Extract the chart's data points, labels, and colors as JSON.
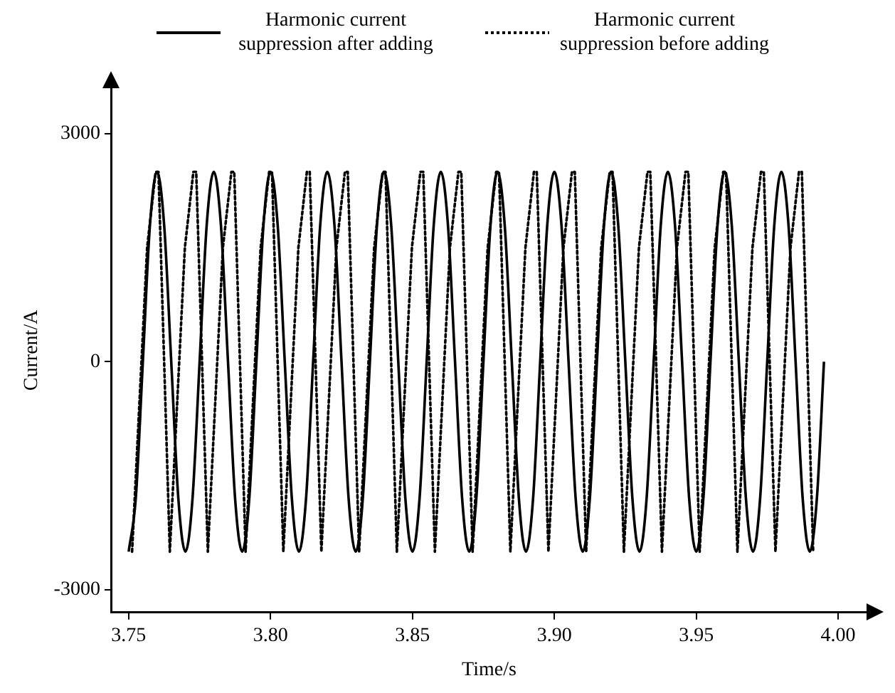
{
  "chart_data": {
    "type": "line",
    "xlabel": "Time/s",
    "ylabel": "Current/A",
    "xlim": [
      3.744,
      4.01
    ],
    "ylim": [
      -3300,
      3600
    ],
    "xticks": [
      3.75,
      {
        "value": 3.8,
        "label": "3.80"
      },
      3.85,
      {
        "value": 3.9,
        "label": "3.90"
      },
      3.95,
      {
        "value": 4.0,
        "label": "4.00"
      }
    ],
    "yticks": [
      -3000,
      0,
      3000
    ],
    "legend": "top",
    "marker": "none",
    "series": [
      {
        "name": "Harmonic current suppression after adding",
        "color": "#000000",
        "line_style": "solid",
        "x": [
          3.75,
          3.7525,
          3.755,
          3.7575,
          3.76,
          3.7625,
          3.765,
          3.7675,
          3.77,
          3.7725,
          3.775,
          3.7775,
          3.78,
          3.7825,
          3.785,
          3.7875,
          3.79,
          3.7925,
          3.795,
          3.7975,
          3.8,
          3.8025,
          3.805,
          3.8075,
          3.81,
          3.8125,
          3.815,
          3.8175,
          3.82,
          3.8225,
          3.825,
          3.8275,
          3.83,
          3.8325,
          3.835,
          3.8375,
          3.84,
          3.8425,
          3.845,
          3.8475,
          3.85,
          3.8525,
          3.855,
          3.8575,
          3.86,
          3.8625,
          3.865,
          3.8675,
          3.87,
          3.8725,
          3.875,
          3.8775,
          3.88,
          3.8825,
          3.885,
          3.8875,
          3.89,
          3.8925,
          3.895,
          3.8975,
          3.9,
          3.9025,
          3.905,
          3.9075,
          3.91,
          3.9125,
          3.915,
          3.9175,
          3.92,
          3.9225,
          3.925,
          3.9275,
          3.93,
          3.9325,
          3.935,
          3.9375,
          3.94,
          3.9425,
          3.945,
          3.9475,
          3.95,
          3.9525,
          3.955,
          3.9575,
          3.96,
          3.9625,
          3.965,
          3.9675,
          3.97,
          3.9725,
          3.975,
          3.9775,
          3.98,
          3.9825,
          3.985,
          3.9875,
          3.99,
          3.9925,
          3.995
        ],
        "values": [
          -2500,
          -1800,
          0,
          1800,
          2500,
          1800,
          0,
          -1800,
          -2500,
          -1800,
          0,
          1800,
          2500,
          1800,
          0,
          -1800,
          -2500,
          -1800,
          0,
          1800,
          2500,
          1800,
          0,
          -1800,
          -2500,
          -1800,
          0,
          1800,
          2500,
          1800,
          0,
          -1800,
          -2500,
          -1800,
          0,
          1800,
          2500,
          1800,
          0,
          -1800,
          -2500,
          -1800,
          0,
          1800,
          2500,
          1800,
          0,
          -1800,
          -2500,
          -1800,
          0,
          1800,
          2500,
          1800,
          0,
          -1800,
          -2500,
          -1800,
          0,
          1800,
          2500,
          1800,
          0,
          -1800,
          -2500,
          -1800,
          0,
          1800,
          2500,
          1800,
          0,
          -1800,
          -2500,
          -1800,
          0,
          1800,
          2500,
          1800,
          0,
          -1800,
          -2500,
          -1800,
          0,
          1800,
          2500,
          1800,
          0,
          -1800,
          -2500,
          -1800,
          0,
          1800,
          2500,
          1800,
          0,
          -1800,
          -2500,
          -1800,
          0
        ]
      },
      {
        "name": "Harmonic current suppression before adding",
        "color": "#000000",
        "line_style": "dotted",
        "x": [
          3.7512,
          3.7565,
          3.7595,
          3.7605,
          3.7645,
          3.7698,
          3.7728,
          3.7738,
          3.7779,
          3.7832,
          3.7862,
          3.7872,
          3.7912,
          3.7965,
          3.7995,
          3.8005,
          3.8045,
          3.8098,
          3.8128,
          3.8138,
          3.8179,
          3.8232,
          3.8262,
          3.8272,
          3.8312,
          3.8365,
          3.8395,
          3.8405,
          3.8445,
          3.8498,
          3.8528,
          3.8538,
          3.8579,
          3.8632,
          3.8662,
          3.8672,
          3.8712,
          3.8765,
          3.8795,
          3.8805,
          3.8845,
          3.8898,
          3.8928,
          3.8938,
          3.8979,
          3.9032,
          3.9062,
          3.9072,
          3.9112,
          3.9165,
          3.9195,
          3.9205,
          3.9245,
          3.9298,
          3.9328,
          3.9338,
          3.9379,
          3.9432,
          3.9462,
          3.9472,
          3.9512,
          3.9565,
          3.9595,
          3.9605,
          3.9645,
          3.9698,
          3.9728,
          3.9738,
          3.9779,
          3.9832,
          3.9862,
          3.9872,
          3.9912
        ],
        "values": [
          -2500,
          1500,
          2500,
          2500,
          -2500,
          1500,
          2500,
          2500,
          -2500,
          1500,
          2500,
          2500,
          -2500,
          1500,
          2500,
          2500,
          -2500,
          1500,
          2500,
          2500,
          -2500,
          1500,
          2500,
          2500,
          -2500,
          1500,
          2500,
          2500,
          -2500,
          1500,
          2500,
          2500,
          -2500,
          1500,
          2500,
          2500,
          -2500,
          1500,
          2500,
          2500,
          -2500,
          1500,
          2500,
          2500,
          -2500,
          1500,
          2500,
          2500,
          -2500,
          1500,
          2500,
          2500,
          -2500,
          1500,
          2500,
          2500,
          -2500,
          1500,
          2500,
          2500,
          -2500,
          1500,
          2500,
          2500,
          -2500,
          1500,
          2500,
          2500,
          -2500,
          1500,
          2500,
          2500,
          -2500
        ]
      }
    ]
  }
}
